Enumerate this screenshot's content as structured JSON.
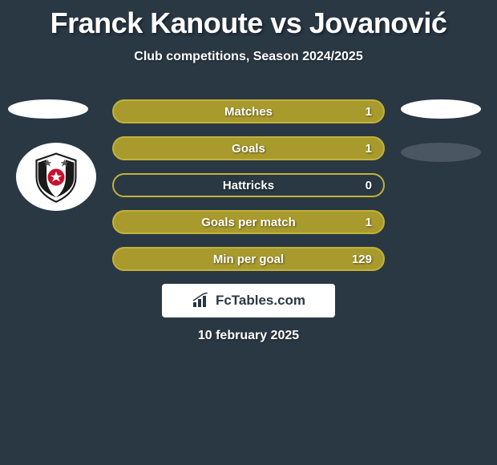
{
  "title": "Franck Kanoute vs Jovanović",
  "subtitle": "Club competitions, Season 2024/2025",
  "bars": [
    {
      "label": "Matches",
      "value": "1",
      "fill": "#a99a2d",
      "border": "#c2b23a"
    },
    {
      "label": "Goals",
      "value": "1",
      "fill": "#a99a2d",
      "border": "#c2b23a"
    },
    {
      "label": "Hattricks",
      "value": "0",
      "fill": "#2a3844",
      "border": "#c2b23a"
    },
    {
      "label": "Goals per match",
      "value": "1",
      "fill": "#a99a2d",
      "border": "#c2b23a"
    },
    {
      "label": "Min per goal",
      "value": "129",
      "fill": "#a99a2d",
      "border": "#c2b23a"
    }
  ],
  "branding": {
    "site": "FcTables.com"
  },
  "date": "10 february 2025",
  "colors": {
    "background": "#2a3844",
    "text": "#ffffff",
    "badge_white": "#ffffff",
    "badge_grey": "#4a5661"
  }
}
